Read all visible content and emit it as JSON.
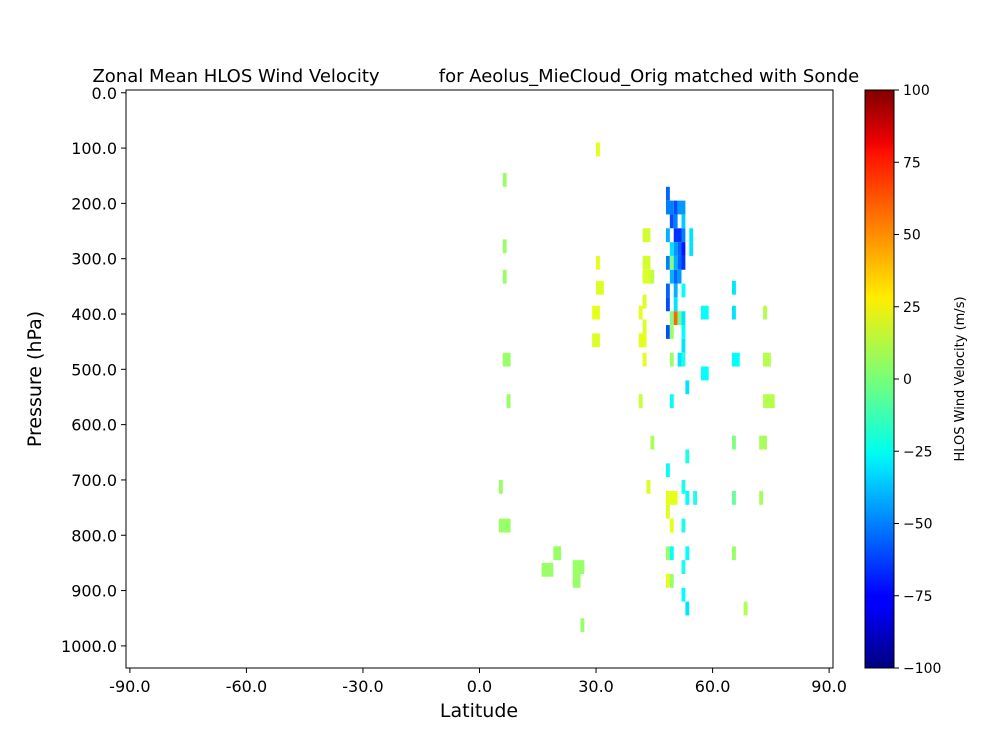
{
  "chart_data": {
    "type": "heatmap",
    "title_left": "Zonal Mean HLOS Wind Velocity",
    "title_right": "for Aeolus_MieCloud_Orig matched with Sonde",
    "xlabel": "Latitude",
    "ylabel": "Pressure (hPa)",
    "xlim": [
      -91,
      91
    ],
    "ylim": [
      1040,
      -5
    ],
    "x_ticks": [
      -90,
      -60,
      -30,
      0,
      30,
      60,
      90
    ],
    "x_tick_labels": [
      "-90.0",
      "-60.0",
      "-30.0",
      "0.0",
      "30.0",
      "60.0",
      "90.0"
    ],
    "y_ticks": [
      0,
      100,
      200,
      300,
      400,
      500,
      600,
      700,
      800,
      900,
      1000
    ],
    "y_tick_labels": [
      "0.0",
      "100.0",
      "200.0",
      "300.0",
      "400.0",
      "500.0",
      "600.0",
      "700.0",
      "800.0",
      "900.0",
      "1000.0"
    ],
    "colorbar": {
      "label": "HLOS Wind Velocity (m/s)",
      "colormap": "jet",
      "range": [
        -100,
        100
      ],
      "ticks": [
        -100,
        -75,
        -50,
        -25,
        0,
        25,
        50,
        75,
        100
      ],
      "tick_labels": [
        "−100",
        "−75",
        "−50",
        "−25",
        "0",
        "25",
        "50",
        "75",
        "100"
      ]
    },
    "grid": false,
    "cells": [
      {
        "x": 30,
        "y": 90,
        "w": 1,
        "h": 25,
        "v": 20
      },
      {
        "x": 6,
        "y": 145,
        "w": 1,
        "h": 25,
        "v": 5
      },
      {
        "x": 6,
        "y": 265,
        "w": 1,
        "h": 25,
        "v": 5
      },
      {
        "x": 6,
        "y": 320,
        "w": 1,
        "h": 25,
        "v": 5
      },
      {
        "x": 6,
        "y": 470,
        "w": 2,
        "h": 25,
        "v": 5
      },
      {
        "x": 7,
        "y": 545,
        "w": 1,
        "h": 25,
        "v": 5
      },
      {
        "x": 5,
        "y": 700,
        "w": 1,
        "h": 25,
        "v": 5
      },
      {
        "x": 5,
        "y": 770,
        "w": 3,
        "h": 25,
        "v": 5
      },
      {
        "x": 19,
        "y": 820,
        "w": 2,
        "h": 25,
        "v": 5
      },
      {
        "x": 16,
        "y": 850,
        "w": 3,
        "h": 25,
        "v": 5
      },
      {
        "x": 24,
        "y": 870,
        "w": 2,
        "h": 25,
        "v": 5
      },
      {
        "x": 24,
        "y": 845,
        "w": 3,
        "h": 25,
        "v": 5
      },
      {
        "x": 26,
        "y": 950,
        "w": 1,
        "h": 25,
        "v": 5
      },
      {
        "x": 30,
        "y": 295,
        "w": 1,
        "h": 25,
        "v": 20
      },
      {
        "x": 30,
        "y": 340,
        "w": 2,
        "h": 25,
        "v": 18
      },
      {
        "x": 29,
        "y": 385,
        "w": 2,
        "h": 25,
        "v": 20
      },
      {
        "x": 29,
        "y": 435,
        "w": 2,
        "h": 25,
        "v": 18
      },
      {
        "x": 41,
        "y": 385,
        "w": 1,
        "h": 25,
        "v": 20
      },
      {
        "x": 41,
        "y": 435,
        "w": 2,
        "h": 25,
        "v": 20
      },
      {
        "x": 42,
        "y": 410,
        "w": 1,
        "h": 25,
        "v": 18
      },
      {
        "x": 42,
        "y": 365,
        "w": 1,
        "h": 25,
        "v": 18
      },
      {
        "x": 42,
        "y": 245,
        "w": 2,
        "h": 25,
        "v": 16
      },
      {
        "x": 42,
        "y": 295,
        "w": 2,
        "h": 25,
        "v": 16
      },
      {
        "x": 42,
        "y": 320,
        "w": 2,
        "h": 25,
        "v": 18
      },
      {
        "x": 44,
        "y": 320,
        "w": 1,
        "h": 25,
        "v": 12
      },
      {
        "x": 42,
        "y": 470,
        "w": 1,
        "h": 25,
        "v": 20
      },
      {
        "x": 41,
        "y": 545,
        "w": 1,
        "h": 25,
        "v": 14
      },
      {
        "x": 44,
        "y": 620,
        "w": 1,
        "h": 25,
        "v": 8
      },
      {
        "x": 43,
        "y": 700,
        "w": 1,
        "h": 25,
        "v": 18
      },
      {
        "x": 48,
        "y": 170,
        "w": 1,
        "h": 25,
        "v": -55
      },
      {
        "x": 48,
        "y": 195,
        "w": 2,
        "h": 25,
        "v": -50
      },
      {
        "x": 50,
        "y": 195,
        "w": 1,
        "h": 25,
        "v": -60
      },
      {
        "x": 51,
        "y": 195,
        "w": 2,
        "h": 25,
        "v": -45
      },
      {
        "x": 49,
        "y": 220,
        "w": 1,
        "h": 25,
        "v": -60
      },
      {
        "x": 50,
        "y": 220,
        "w": 1,
        "h": 25,
        "v": -50
      },
      {
        "x": 52,
        "y": 220,
        "w": 1,
        "h": 25,
        "v": -35
      },
      {
        "x": 48,
        "y": 245,
        "w": 1,
        "h": 25,
        "v": -40
      },
      {
        "x": 50,
        "y": 245,
        "w": 2,
        "h": 25,
        "v": -65
      },
      {
        "x": 52,
        "y": 245,
        "w": 1,
        "h": 25,
        "v": -50
      },
      {
        "x": 54,
        "y": 245,
        "w": 1,
        "h": 25,
        "v": -30
      },
      {
        "x": 49,
        "y": 270,
        "w": 1,
        "h": 25,
        "v": -30
      },
      {
        "x": 50,
        "y": 270,
        "w": 1,
        "h": 25,
        "v": -45
      },
      {
        "x": 51,
        "y": 270,
        "w": 1,
        "h": 25,
        "v": -55
      },
      {
        "x": 52,
        "y": 270,
        "w": 1,
        "h": 25,
        "v": -70
      },
      {
        "x": 54,
        "y": 270,
        "w": 1,
        "h": 25,
        "v": -30
      },
      {
        "x": 48,
        "y": 295,
        "w": 1,
        "h": 25,
        "v": -50
      },
      {
        "x": 49,
        "y": 295,
        "w": 1,
        "h": 25,
        "v": 0
      },
      {
        "x": 50,
        "y": 295,
        "w": 1,
        "h": 25,
        "v": -40
      },
      {
        "x": 51,
        "y": 295,
        "w": 1,
        "h": 25,
        "v": -55
      },
      {
        "x": 52,
        "y": 295,
        "w": 1,
        "h": 25,
        "v": -65
      },
      {
        "x": 49,
        "y": 320,
        "w": 1,
        "h": 25,
        "v": -40
      },
      {
        "x": 50,
        "y": 320,
        "w": 1,
        "h": 25,
        "v": -55
      },
      {
        "x": 51,
        "y": 320,
        "w": 1,
        "h": 25,
        "v": -45
      },
      {
        "x": 48,
        "y": 345,
        "w": 1,
        "h": 25,
        "v": -55
      },
      {
        "x": 50,
        "y": 345,
        "w": 1,
        "h": 25,
        "v": -40
      },
      {
        "x": 52,
        "y": 345,
        "w": 1,
        "h": 25,
        "v": -25
      },
      {
        "x": 48,
        "y": 370,
        "w": 1,
        "h": 25,
        "v": -60
      },
      {
        "x": 50,
        "y": 370,
        "w": 1,
        "h": 25,
        "v": -30
      },
      {
        "x": 49,
        "y": 395,
        "w": 1,
        "h": 25,
        "v": 0
      },
      {
        "x": 50,
        "y": 395,
        "w": 1,
        "h": 25,
        "v": 55
      },
      {
        "x": 51,
        "y": 395,
        "w": 1,
        "h": 25,
        "v": -5
      },
      {
        "x": 52,
        "y": 395,
        "w": 1,
        "h": 25,
        "v": -30
      },
      {
        "x": 48,
        "y": 420,
        "w": 1,
        "h": 25,
        "v": -60
      },
      {
        "x": 49,
        "y": 420,
        "w": 1,
        "h": 25,
        "v": 5
      },
      {
        "x": 52,
        "y": 420,
        "w": 1,
        "h": 25,
        "v": -25
      },
      {
        "x": 52,
        "y": 445,
        "w": 1,
        "h": 25,
        "v": -30
      },
      {
        "x": 49,
        "y": 470,
        "w": 1,
        "h": 25,
        "v": 5
      },
      {
        "x": 51,
        "y": 470,
        "w": 1,
        "h": 25,
        "v": -30
      },
      {
        "x": 52,
        "y": 470,
        "w": 1,
        "h": 25,
        "v": -20
      },
      {
        "x": 53,
        "y": 520,
        "w": 1,
        "h": 25,
        "v": -30
      },
      {
        "x": 49,
        "y": 545,
        "w": 1,
        "h": 25,
        "v": -25
      },
      {
        "x": 57,
        "y": 385,
        "w": 2,
        "h": 25,
        "v": -25
      },
      {
        "x": 57,
        "y": 495,
        "w": 2,
        "h": 25,
        "v": -25
      },
      {
        "x": 65,
        "y": 340,
        "w": 1,
        "h": 25,
        "v": -30
      },
      {
        "x": 65,
        "y": 385,
        "w": 1,
        "h": 25,
        "v": -30
      },
      {
        "x": 65,
        "y": 470,
        "w": 2,
        "h": 25,
        "v": -25
      },
      {
        "x": 73,
        "y": 385,
        "w": 1,
        "h": 25,
        "v": 10
      },
      {
        "x": 73,
        "y": 470,
        "w": 2,
        "h": 25,
        "v": 10
      },
      {
        "x": 73,
        "y": 545,
        "w": 3,
        "h": 25,
        "v": 10
      },
      {
        "x": 72,
        "y": 620,
        "w": 2,
        "h": 25,
        "v": 8
      },
      {
        "x": 65,
        "y": 620,
        "w": 1,
        "h": 25,
        "v": 0
      },
      {
        "x": 53,
        "y": 645,
        "w": 1,
        "h": 25,
        "v": -20
      },
      {
        "x": 48,
        "y": 670,
        "w": 1,
        "h": 25,
        "v": -25
      },
      {
        "x": 52,
        "y": 700,
        "w": 1,
        "h": 25,
        "v": -20
      },
      {
        "x": 48,
        "y": 720,
        "w": 1,
        "h": 25,
        "v": 20
      },
      {
        "x": 49,
        "y": 720,
        "w": 2,
        "h": 25,
        "v": 20
      },
      {
        "x": 53,
        "y": 720,
        "w": 1,
        "h": 25,
        "v": -25
      },
      {
        "x": 55,
        "y": 720,
        "w": 1,
        "h": 25,
        "v": -20
      },
      {
        "x": 65,
        "y": 720,
        "w": 1,
        "h": 25,
        "v": -5
      },
      {
        "x": 72,
        "y": 720,
        "w": 1,
        "h": 25,
        "v": 8
      },
      {
        "x": 48,
        "y": 745,
        "w": 1,
        "h": 25,
        "v": 18
      },
      {
        "x": 49,
        "y": 770,
        "w": 1,
        "h": 25,
        "v": 20
      },
      {
        "x": 52,
        "y": 770,
        "w": 1,
        "h": 25,
        "v": -20
      },
      {
        "x": 48,
        "y": 820,
        "w": 1,
        "h": 25,
        "v": 5
      },
      {
        "x": 49,
        "y": 820,
        "w": 1,
        "h": 25,
        "v": -25
      },
      {
        "x": 53,
        "y": 820,
        "w": 1,
        "h": 25,
        "v": -25
      },
      {
        "x": 65,
        "y": 820,
        "w": 1,
        "h": 25,
        "v": 5
      },
      {
        "x": 52,
        "y": 845,
        "w": 1,
        "h": 25,
        "v": -20
      },
      {
        "x": 48,
        "y": 870,
        "w": 1,
        "h": 25,
        "v": 20
      },
      {
        "x": 49,
        "y": 870,
        "w": 1,
        "h": 25,
        "v": 5
      },
      {
        "x": 52,
        "y": 895,
        "w": 1,
        "h": 25,
        "v": -25
      },
      {
        "x": 53,
        "y": 920,
        "w": 1,
        "h": 25,
        "v": -30
      },
      {
        "x": 68,
        "y": 920,
        "w": 1,
        "h": 25,
        "v": 10
      }
    ]
  }
}
